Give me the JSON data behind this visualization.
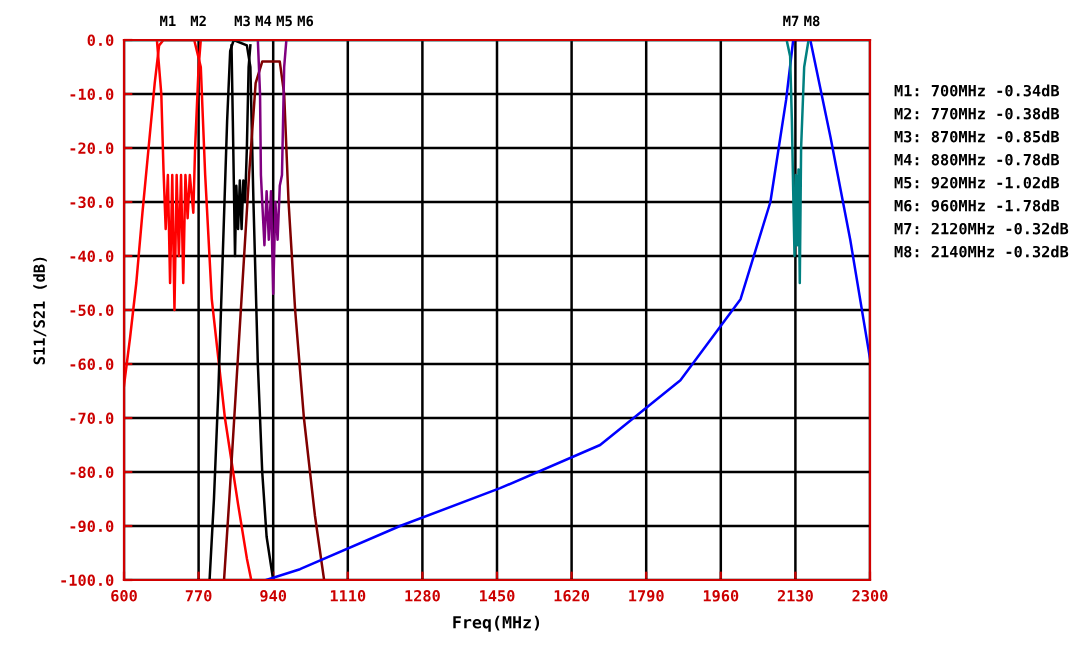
{
  "chart_data": {
    "type": "line",
    "xlabel": "Freq(MHz)",
    "ylabel": "S11/S21 (dB)",
    "xlim": [
      600,
      2300
    ],
    "xticks": [
      600,
      770,
      940,
      1110,
      1280,
      1450,
      1620,
      1790,
      1960,
      2130,
      2300
    ],
    "ylim": [
      -100,
      0
    ],
    "yticks": [
      {
        "value": 0,
        "label": "0.0"
      },
      {
        "value": -10,
        "label": "-10.0"
      },
      {
        "value": -20,
        "label": "-20.0"
      },
      {
        "value": -30,
        "label": "-30.0"
      },
      {
        "value": -40,
        "label": "-40.0"
      },
      {
        "value": -50,
        "label": "-50.0"
      },
      {
        "value": -60,
        "label": "-60.0"
      },
      {
        "value": -70,
        "label": "-70.0"
      },
      {
        "value": -80,
        "label": "-80.0"
      },
      {
        "value": -90,
        "label": "-90.0"
      },
      {
        "value": -100,
        "label": "-100.0"
      }
    ],
    "grid": true,
    "legend": false,
    "marker": "none",
    "line_style": "solid",
    "series": [
      {
        "color": "#ff0000",
        "x": [
          600,
          614,
          628,
          642,
          656,
          670,
          680,
          690,
          760,
          775,
          785,
          800,
          830,
          860,
          880,
          890
        ],
        "values": [
          -64,
          -55,
          -45,
          -32,
          -20,
          -8,
          -1,
          0,
          0,
          -5,
          -25,
          -48,
          -70,
          -86,
          -96,
          -100
        ]
      },
      {
        "color": "#ff0000",
        "x": [
          675,
          685,
          690,
          695,
          700,
          705,
          710,
          715,
          720,
          725,
          730,
          735,
          740,
          745,
          750,
          758,
          762,
          770,
          775
        ],
        "values": [
          0,
          -10,
          -24,
          -35,
          -25,
          -45,
          -25,
          -50,
          -25,
          -40,
          -25,
          -45,
          -25,
          -33,
          -25,
          -32,
          -20,
          -5,
          0
        ]
      },
      {
        "color": "#000000",
        "x": [
          795,
          805,
          815,
          825,
          835,
          842,
          850,
          880,
          888,
          895,
          905,
          915,
          925,
          940
        ],
        "values": [
          -100,
          -85,
          -65,
          -40,
          -15,
          -2,
          0,
          -1,
          -5,
          -30,
          -60,
          -80,
          -92,
          -100
        ]
      },
      {
        "color": "#000000",
        "x": [
          845,
          848,
          850,
          853,
          856,
          860,
          864,
          868,
          872,
          876,
          880,
          884,
          888
        ],
        "values": [
          -1,
          -15,
          -25,
          -40,
          -27,
          -35,
          -26,
          -35,
          -26,
          -30,
          -20,
          -5,
          -1
        ]
      },
      {
        "color": "#800000",
        "x": [
          828,
          840,
          855,
          870,
          885,
          900,
          915,
          955,
          965,
          975,
          990,
          1010,
          1035,
          1056
        ],
        "values": [
          -100,
          -85,
          -65,
          -45,
          -25,
          -8,
          -4,
          -4,
          -10,
          -30,
          -50,
          -70,
          -88,
          -100
        ]
      },
      {
        "color": "#800080",
        "x": [
          905,
          910,
          912,
          915,
          920,
          925,
          930,
          935,
          940,
          945,
          950,
          955,
          960,
          965,
          970
        ],
        "values": [
          0,
          -10,
          -25,
          -30,
          -38,
          -28,
          -37,
          -28,
          -47,
          -30,
          -37,
          -27,
          -25,
          -5,
          0
        ]
      },
      {
        "color": "#0000ff",
        "x": [
          924,
          1001,
          1229,
          1457,
          1685,
          1868,
          2005,
          2073,
          2109,
          2125,
          2164,
          2210,
          2255,
          2300
        ],
        "values": [
          -100,
          -98,
          -90,
          -83,
          -75,
          -63,
          -48,
          -30,
          -11,
          0,
          0,
          -18,
          -37,
          -59
        ]
      },
      {
        "color": "#008080",
        "x": [
          600,
          2110,
          2118,
          2122,
          2125,
          2128,
          2131,
          2134,
          2137,
          2140,
          2143,
          2150,
          2160,
          2300
        ],
        "values": [
          0,
          0,
          -3,
          -15,
          -28,
          -40,
          -25,
          -38,
          -24,
          -45,
          -20,
          -5,
          0,
          0
        ]
      }
    ],
    "annotations": [
      {
        "text": "M1",
        "x": 700,
        "y": 0
      },
      {
        "text": "M2",
        "x": 770,
        "y": 0
      },
      {
        "text": "M3",
        "x": 870,
        "y": 0
      },
      {
        "text": "M4",
        "x": 880,
        "y": 0
      },
      {
        "text": "M5",
        "x": 920,
        "y": 0
      },
      {
        "text": "M6",
        "x": 960,
        "y": 0
      },
      {
        "text": "M7",
        "x": 2120,
        "y": 0
      },
      {
        "text": "M8",
        "x": 2140,
        "y": 0
      },
      "M1: 700MHz -0.34dB",
      "M2: 770MHz -0.38dB",
      "M3: 870MHz -0.85dB",
      "M4: 880MHz -0.78dB",
      "M5: 920MHz -1.02dB",
      "M6: 960MHz -1.78dB",
      "M7: 2120MHz -0.32dB",
      "M8: 2140MHz -0.32dB"
    ]
  }
}
